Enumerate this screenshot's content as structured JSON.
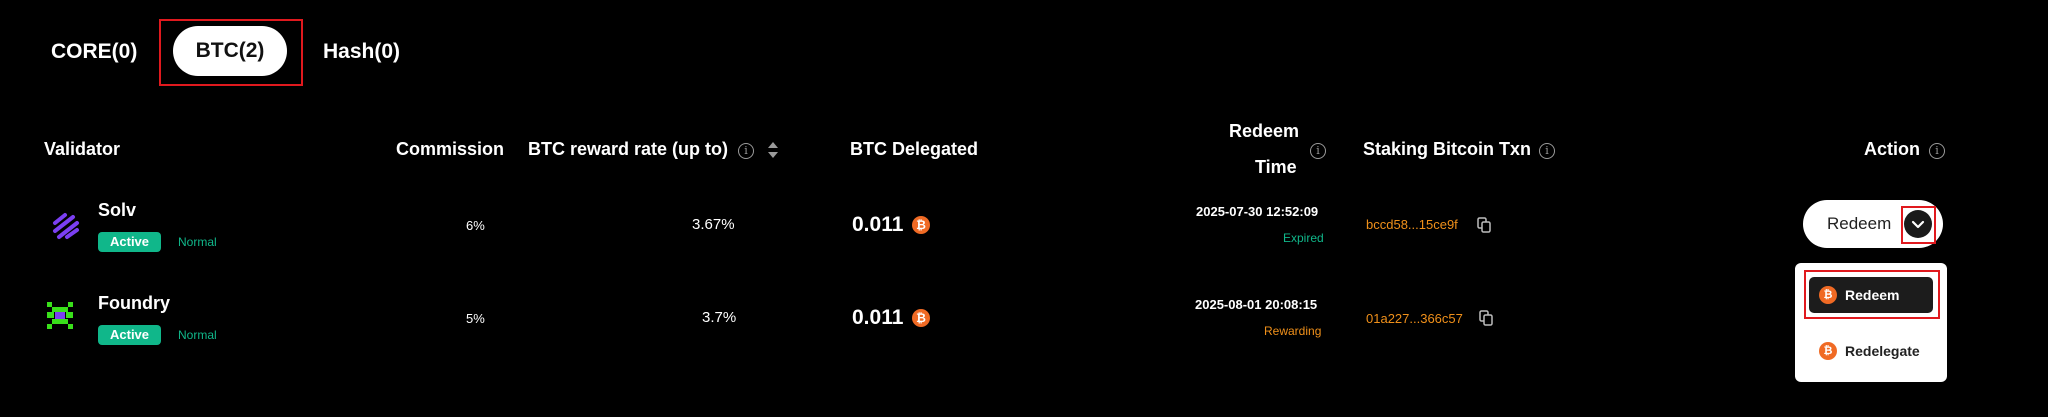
{
  "tabs": [
    {
      "label": "CORE(0)",
      "active": false
    },
    {
      "label": "BTC(2)",
      "active": true
    },
    {
      "label": "Hash(0)",
      "active": false
    }
  ],
  "table": {
    "headers": {
      "validator": "Validator",
      "commission": "Commission",
      "reward_rate": "BTC reward rate (up to)",
      "delegated": "BTC Delegated",
      "redeem_time_line1": "Redeem",
      "redeem_time_line2": "Time",
      "txn": "Staking Bitcoin Txn",
      "action": "Action"
    },
    "rows": [
      {
        "name": "Solv",
        "badge": "Active",
        "tag": "Normal",
        "commission": "6%",
        "reward_rate": "3.67%",
        "delegated": "0.011",
        "redeem_time": "2025-07-30 12:52:09",
        "status": "Expired",
        "txn": "bccd58...15ce9f"
      },
      {
        "name": "Foundry",
        "badge": "Active",
        "tag": "Normal",
        "commission": "5%",
        "reward_rate": "3.7%",
        "delegated": "0.011",
        "redeem_time": "2025-08-01 20:08:15",
        "status": "Rewarding",
        "txn": "01a227...366c57"
      }
    ]
  },
  "action": {
    "button_label": "Redeem",
    "dropdown": [
      {
        "label": "Redeem",
        "selected": true
      },
      {
        "label": "Redelegate",
        "selected": false
      }
    ]
  },
  "icons": {
    "btc_glyph": "₿",
    "info_glyph": "i"
  },
  "colors": {
    "background": "#000000",
    "active_green": "#10b78a",
    "accent_orange": "#f0901a",
    "btc_orange": "#f06a24",
    "highlight_red": "#e0191e"
  }
}
